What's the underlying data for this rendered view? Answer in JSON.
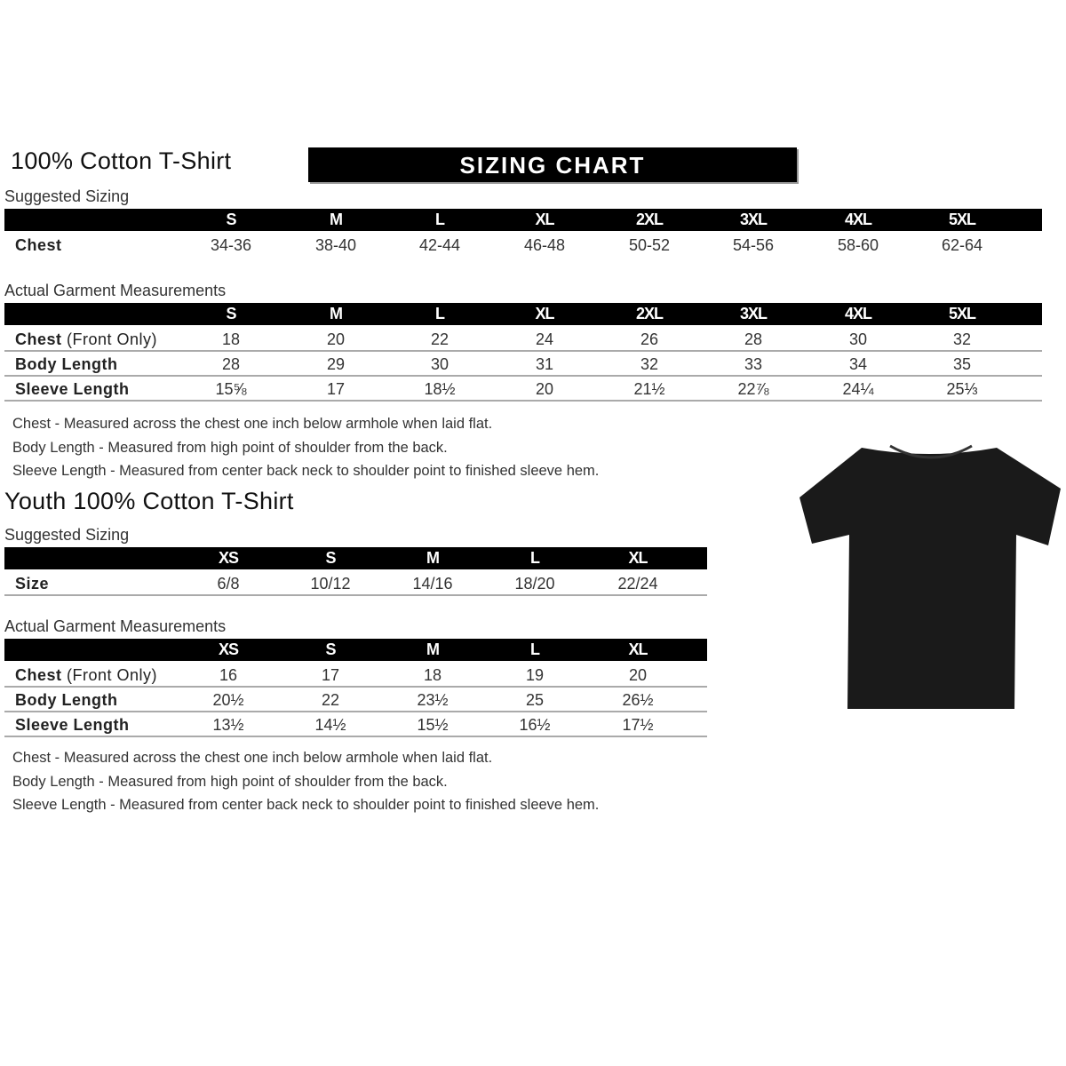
{
  "adult": {
    "title": "100% Cotton T-Shirt",
    "banner": "SIZING CHART",
    "suggested_label": "Suggested Sizing",
    "sizes": [
      "S",
      "M",
      "L",
      "XL",
      "2XL",
      "3XL",
      "4XL",
      "5XL"
    ],
    "suggested_rows": [
      {
        "label": "Chest",
        "label_extra": "",
        "values": [
          "34-36",
          "38-40",
          "42-44",
          "46-48",
          "50-52",
          "54-56",
          "58-60",
          "62-64"
        ]
      }
    ],
    "actual_label": "Actual Garment Measurements",
    "actual_rows": [
      {
        "label": "Chest",
        "label_extra": " (Front Only)",
        "values": [
          "18",
          "20",
          "22",
          "24",
          "26",
          "28",
          "30",
          "32"
        ]
      },
      {
        "label": "Body Length",
        "label_extra": "",
        "values": [
          "28",
          "29",
          "30",
          "31",
          "32",
          "33",
          "34",
          "35"
        ]
      },
      {
        "label": "Sleeve Length",
        "label_extra": "",
        "values": [
          "15⅝",
          "17",
          "18½",
          "20",
          "21½",
          "22⅞",
          "24¼",
          "25⅓"
        ]
      }
    ],
    "notes": [
      "Chest - Measured across the chest one inch below armhole when laid flat.",
      "Body Length - Measured from high point of shoulder from the back.",
      "Sleeve Length - Measured from center back neck to shoulder point to finished sleeve hem."
    ]
  },
  "youth": {
    "title": "Youth 100% Cotton T-Shirt",
    "suggested_label": "Suggested Sizing",
    "sizes": [
      "XS",
      "S",
      "M",
      "L",
      "XL"
    ],
    "suggested_rows": [
      {
        "label": "Size",
        "label_extra": "",
        "values": [
          "6/8",
          "10/12",
          "14/16",
          "18/20",
          "22/24"
        ]
      }
    ],
    "actual_label": "Actual Garment Measurements",
    "actual_rows": [
      {
        "label": "Chest",
        "label_extra": " (Front Only)",
        "values": [
          "16",
          "17",
          "18",
          "19",
          "20"
        ]
      },
      {
        "label": "Body Length",
        "label_extra": "",
        "values": [
          "20½",
          "22",
          "23½",
          "25",
          "26½"
        ]
      },
      {
        "label": "Sleeve Length",
        "label_extra": "",
        "values": [
          "13½",
          "14½",
          "15½",
          "16½",
          "17½"
        ]
      }
    ],
    "notes": [
      "Chest - Measured across the chest one inch below armhole when laid flat.",
      "Body Length - Measured from high point of shoulder from the back.",
      "Sleeve Length - Measured from center back neck to shoulder point to finished sleeve hem."
    ]
  },
  "image": {
    "icon": "t-shirt-icon",
    "color": "#1a1a1a"
  }
}
